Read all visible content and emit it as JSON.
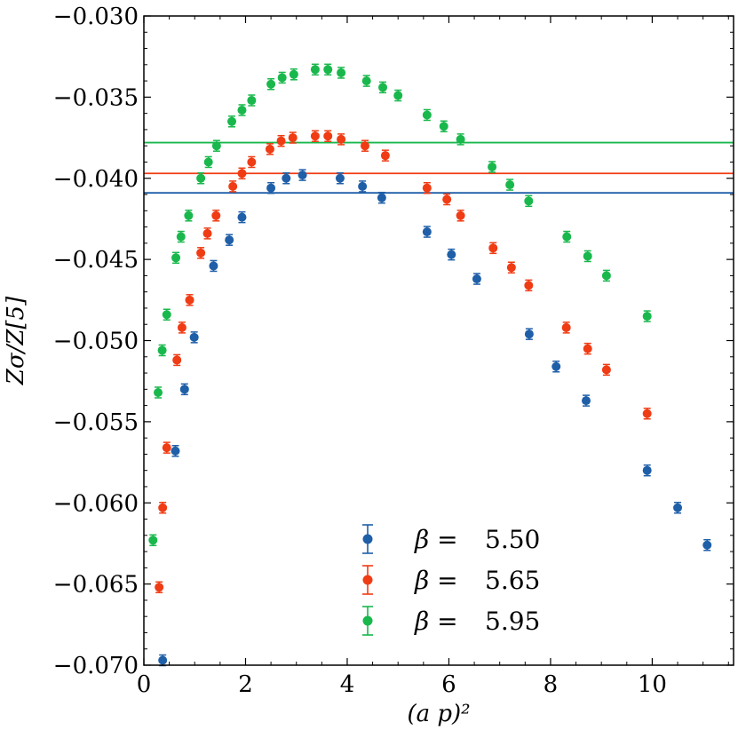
{
  "chart_data": {
    "type": "scatter",
    "title": "",
    "xlabel": "(a p)²",
    "ylabel": "Zσ/Z[5]",
    "xlim": [
      0,
      11.6
    ],
    "ylim": [
      -0.07,
      -0.03
    ],
    "xticks": [
      0,
      2,
      4,
      6,
      8,
      10
    ],
    "xtick_labels": [
      "0",
      "2",
      "4",
      "6",
      "8",
      "10"
    ],
    "yticks": [
      -0.07,
      -0.065,
      -0.06,
      -0.055,
      -0.05,
      -0.045,
      -0.04,
      -0.035,
      -0.03
    ],
    "ytick_labels": [
      "−0.070",
      "−0.065",
      "−0.060",
      "−0.055",
      "−0.050",
      "−0.045",
      "−0.040",
      "−0.035",
      "−0.030"
    ],
    "legend_position": "lower-center",
    "series": [
      {
        "name": "β = 5.50",
        "beta_label": "β =",
        "beta_value": "5.50",
        "color": "#1f5fa8",
        "hline": -0.0409,
        "x": [
          0.37,
          0.62,
          0.8,
          0.99,
          1.37,
          1.68,
          1.93,
          2.5,
          2.8,
          3.12,
          3.86,
          4.3,
          4.68,
          5.57,
          6.05,
          6.55,
          7.58,
          8.11,
          8.7,
          9.9,
          10.5,
          11.08
        ],
        "y": [
          -0.0697,
          -0.0568,
          -0.053,
          -0.0498,
          -0.0454,
          -0.0438,
          -0.0424,
          -0.0406,
          -0.04,
          -0.0398,
          -0.04,
          -0.0405,
          -0.0412,
          -0.0433,
          -0.0447,
          -0.0462,
          -0.0496,
          -0.0516,
          -0.0537,
          -0.058,
          -0.0603,
          -0.0626
        ]
      },
      {
        "name": "β = 5.65",
        "beta_label": "β =",
        "beta_value": "5.65",
        "color": "#f03c14",
        "hline": -0.0397,
        "x": [
          0.3,
          0.37,
          0.45,
          0.65,
          0.75,
          0.9,
          1.12,
          1.25,
          1.42,
          1.75,
          1.93,
          2.12,
          2.48,
          2.7,
          2.93,
          3.37,
          3.62,
          3.88,
          4.35,
          4.75,
          5.57,
          5.96,
          6.23,
          6.87,
          7.23,
          7.57,
          8.31,
          8.73,
          9.1,
          9.9
        ],
        "y": [
          -0.0652,
          -0.0603,
          -0.0566,
          -0.0512,
          -0.0492,
          -0.0475,
          -0.0446,
          -0.0434,
          -0.0423,
          -0.0405,
          -0.0397,
          -0.039,
          -0.0382,
          -0.0377,
          -0.0375,
          -0.0374,
          -0.0374,
          -0.0376,
          -0.038,
          -0.0386,
          -0.0406,
          -0.0413,
          -0.0423,
          -0.0443,
          -0.0455,
          -0.0466,
          -0.0492,
          -0.0505,
          -0.0518,
          -0.0545
        ]
      },
      {
        "name": "β = 5.95",
        "beta_label": "β =",
        "beta_value": "5.95",
        "color": "#19b84c",
        "hline": -0.0378,
        "x": [
          0.18,
          0.28,
          0.36,
          0.45,
          0.63,
          0.73,
          0.88,
          1.12,
          1.27,
          1.43,
          1.73,
          1.93,
          2.12,
          2.5,
          2.72,
          2.95,
          3.37,
          3.62,
          3.88,
          4.38,
          4.7,
          5.0,
          5.57,
          5.9,
          6.23,
          6.85,
          7.2,
          7.57,
          8.32,
          8.73,
          9.1,
          9.9
        ],
        "y": [
          -0.0623,
          -0.0532,
          -0.0506,
          -0.0484,
          -0.0449,
          -0.0436,
          -0.0423,
          -0.04,
          -0.039,
          -0.038,
          -0.0365,
          -0.0358,
          -0.0352,
          -0.0342,
          -0.0338,
          -0.0336,
          -0.0333,
          -0.0333,
          -0.0335,
          -0.034,
          -0.0344,
          -0.0349,
          -0.0361,
          -0.0368,
          -0.0376,
          -0.0393,
          -0.0404,
          -0.0414,
          -0.0436,
          -0.0448,
          -0.046,
          -0.0485
        ]
      }
    ]
  }
}
